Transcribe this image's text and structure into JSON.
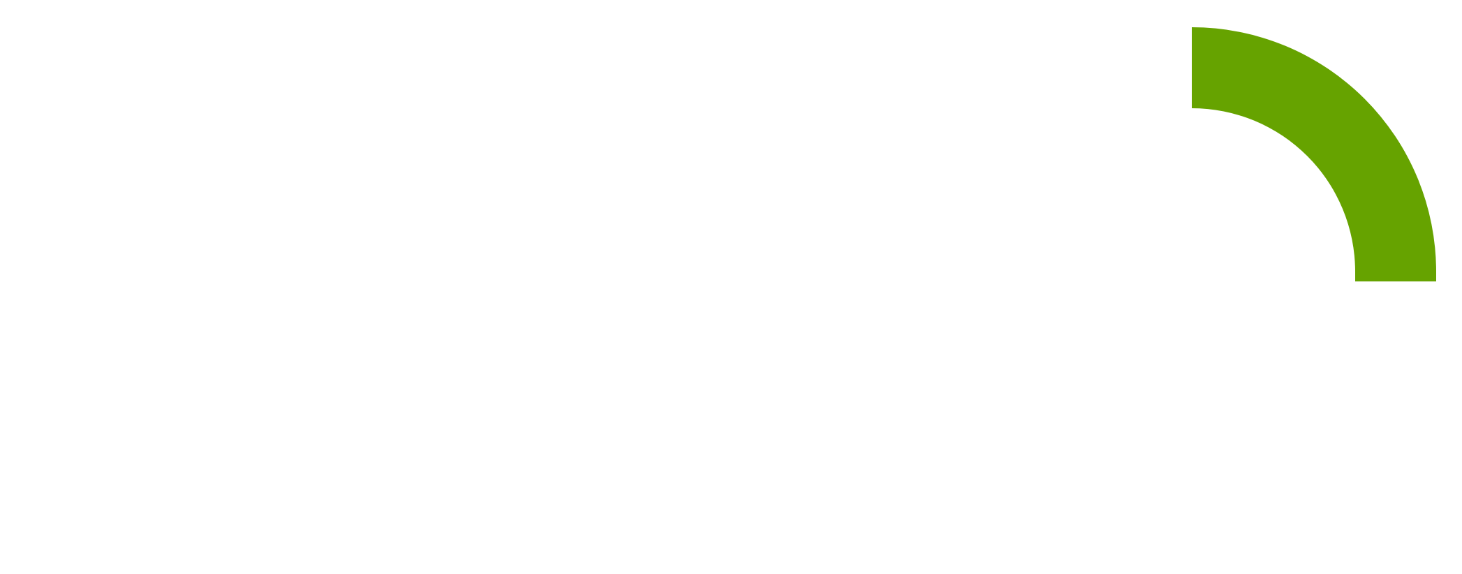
{
  "graphic": {
    "shape": "quarter-ring",
    "fill_color": "#66a300",
    "background_color": "#ffffff"
  }
}
